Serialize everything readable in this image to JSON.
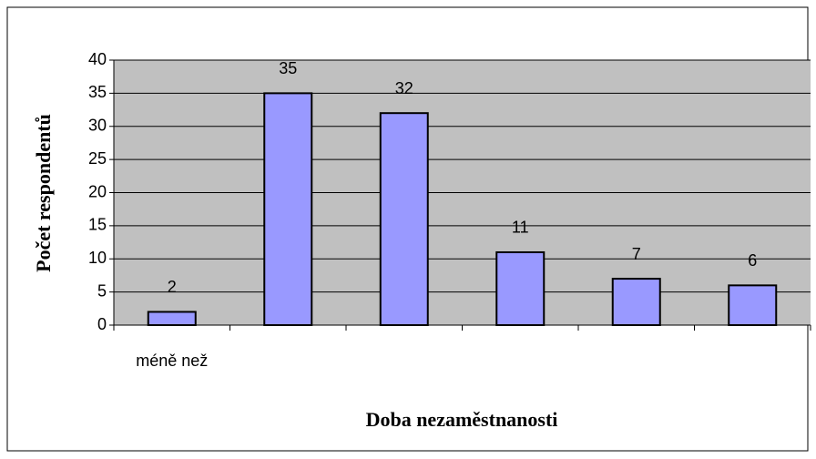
{
  "chart_data": {
    "type": "bar",
    "y_label": "Počet respondentů",
    "x_label": "Doba nezaměstnanosti",
    "categories": [
      "méně než",
      null,
      null,
      null,
      null,
      null
    ],
    "values": [
      2,
      35,
      32,
      11,
      7,
      6
    ],
    "color": "#9999ff",
    "ylim": [
      0,
      40
    ],
    "yticks": [
      0,
      5,
      10,
      15,
      20,
      25,
      30,
      35,
      40
    ],
    "grid": true
  }
}
